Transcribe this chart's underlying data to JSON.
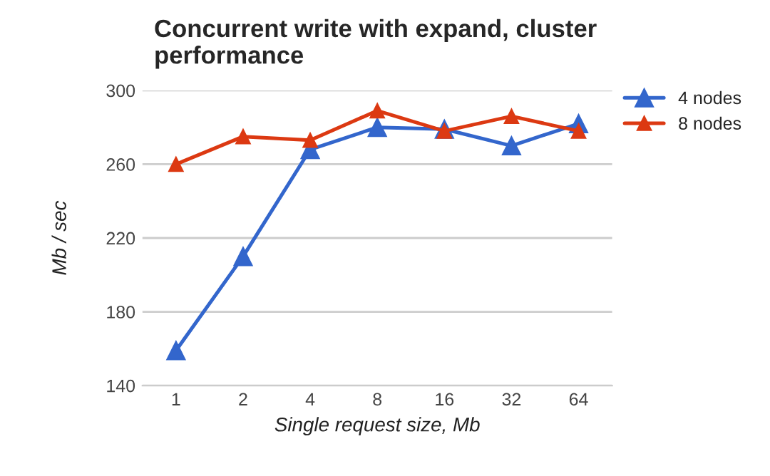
{
  "chart_data": {
    "type": "line",
    "title": "Concurrent write with expand, cluster performance",
    "xlabel": "Single request size, Mb",
    "ylabel": "Mb / sec",
    "categories": [
      "1",
      "2",
      "4",
      "8",
      "16",
      "32",
      "64"
    ],
    "series": [
      {
        "name": "4 nodes",
        "color": "#3366cc",
        "values": [
          159,
          210,
          268,
          280,
          279,
          270,
          282
        ]
      },
      {
        "name": "8 nodes",
        "color": "#dc3912",
        "values": [
          260,
          275,
          273,
          289,
          278,
          286,
          278
        ]
      }
    ],
    "ylim": [
      140,
      300
    ],
    "yticks": [
      140,
      180,
      220,
      260,
      300
    ],
    "grid": "y",
    "legend": "right",
    "marker": "triangle",
    "line_style": "solid"
  }
}
